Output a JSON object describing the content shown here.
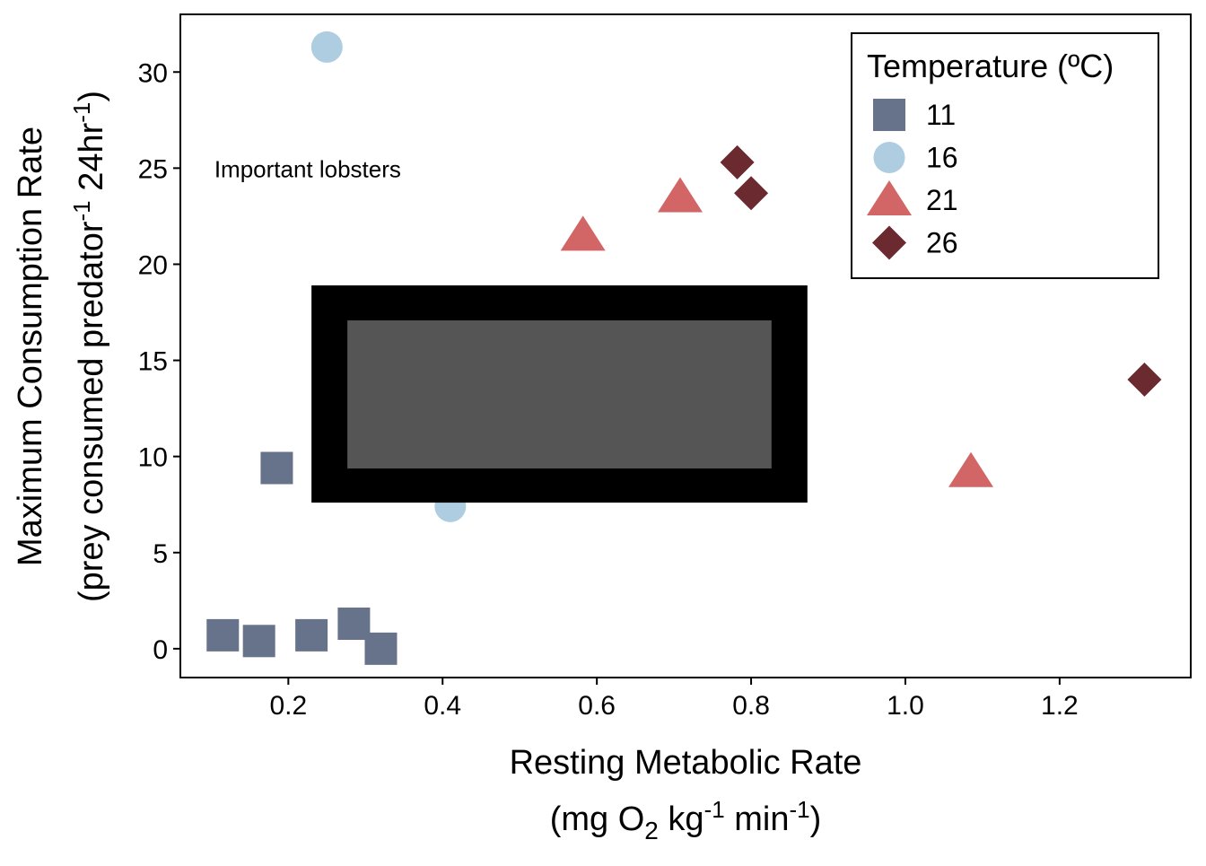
{
  "chart_data": {
    "type": "scatter",
    "xlabel": {
      "line1": "Resting Metabolic Rate",
      "line2": {
        "pre": "(mg O",
        "sub": "2",
        "mid1": " kg",
        "sup1": "-1",
        "mid2": " min",
        "sup2": "-1",
        "post": ")"
      }
    },
    "ylabel": {
      "line1": "Maximum Consumption Rate",
      "line2": {
        "pre": "(prey consumed predator",
        "sup1": "-1",
        "mid": " 24hr",
        "sup2": "-1",
        "post": ")"
      }
    },
    "xlim": [
      0.06,
      1.37
    ],
    "ylim": [
      -1.5,
      33
    ],
    "x_ticks": [
      0.2,
      0.4,
      0.6,
      0.8,
      1.0,
      1.2
    ],
    "x_tick_labels": [
      "0.2",
      "0.4",
      "0.6",
      "0.8",
      "1.0",
      "1.2"
    ],
    "y_ticks": [
      0,
      5,
      10,
      15,
      20,
      25,
      30
    ],
    "y_tick_labels": [
      "0",
      "5",
      "10",
      "15",
      "20",
      "25",
      "30"
    ],
    "grid": false,
    "legend": {
      "title": "Temperature (ºC)",
      "placement": "top-right"
    },
    "series": [
      {
        "name": "11",
        "marker": "square",
        "color": "#67738a",
        "points": [
          {
            "x": 0.115,
            "y": 0.7
          },
          {
            "x": 0.162,
            "y": 0.4
          },
          {
            "x": 0.185,
            "y": 9.4
          },
          {
            "x": 0.23,
            "y": 0.7
          },
          {
            "x": 0.285,
            "y": 1.3
          },
          {
            "x": 0.32,
            "y": 0.0
          }
        ]
      },
      {
        "name": "16",
        "marker": "circle",
        "color": "#aecde0",
        "points": [
          {
            "x": 0.25,
            "y": 31.3
          },
          {
            "x": 0.41,
            "y": 7.4
          }
        ]
      },
      {
        "name": "21",
        "marker": "triangle",
        "color": "#d26666",
        "points": [
          {
            "x": 0.582,
            "y": 21.5
          },
          {
            "x": 0.708,
            "y": 23.5
          },
          {
            "x": 1.085,
            "y": 9.2
          }
        ]
      },
      {
        "name": "26",
        "marker": "diamond",
        "color": "#6b2a30",
        "points": [
          {
            "x": 0.782,
            "y": 25.3
          },
          {
            "x": 0.8,
            "y": 23.7
          },
          {
            "x": 1.31,
            "y": 14.0
          }
        ]
      }
    ],
    "annotations": [
      {
        "text": "Important lobsters",
        "x": 0.104,
        "y": 25.0
      }
    ],
    "overlay_box": {
      "x0": 0.23,
      "x1": 0.873,
      "y0": 7.6,
      "y1": 18.9,
      "outer_color": "#000000",
      "inner_color": "#555555"
    }
  }
}
